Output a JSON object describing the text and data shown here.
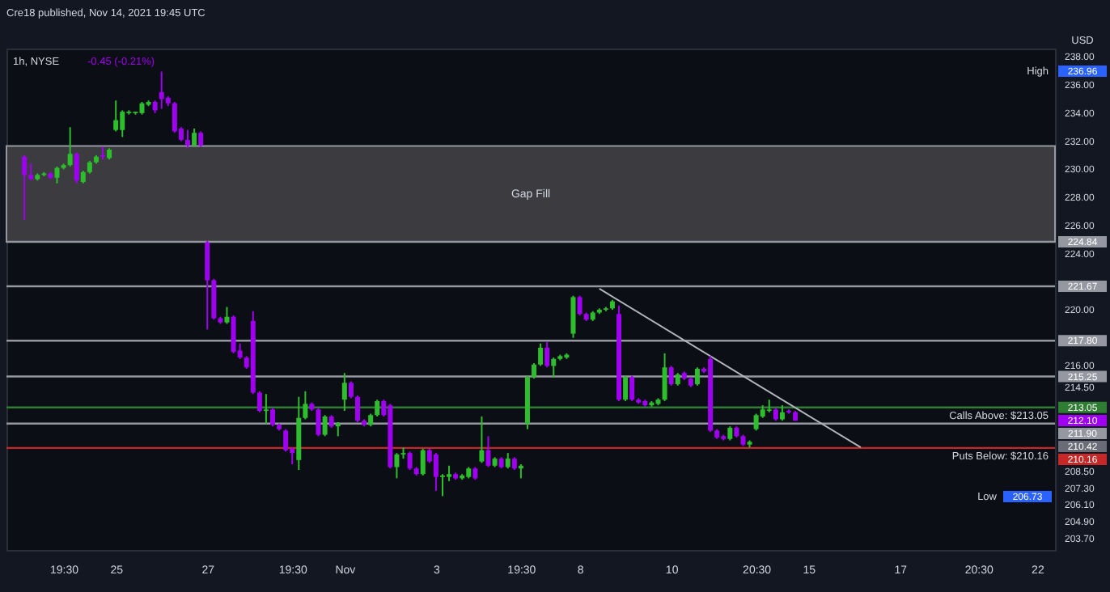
{
  "chart_data": {
    "type": "candlestick",
    "title": "Cre18 published, Nov 14, 2021 19:45 UTC",
    "subtitle": "1h, NYSE",
    "categories": [
      null,
      null,
      null,
      null,
      null,
      null,
      "19:30",
      null,
      null,
      null,
      null,
      null,
      null,
      null,
      "25",
      null,
      null,
      null,
      null,
      null,
      null,
      null,
      null,
      null,
      null,
      null,
      null,
      null,
      "27",
      null,
      null,
      null,
      null,
      null,
      null,
      null,
      null,
      null,
      null,
      null,
      null,
      "19:30",
      null,
      null,
      null,
      null,
      null,
      null,
      null,
      "Nov",
      null,
      null,
      null,
      null,
      null,
      null,
      null,
      null,
      null,
      null,
      null,
      null,
      null,
      "3",
      null,
      null,
      null,
      null,
      null,
      null,
      null,
      null,
      null,
      null,
      null,
      null,
      "19:30",
      null,
      null,
      null,
      null,
      null,
      null,
      null,
      null,
      "8",
      null,
      null,
      null,
      null,
      null,
      null,
      null,
      null,
      null,
      null,
      null,
      null,
      null,
      "10",
      null,
      null,
      null,
      null,
      null,
      null,
      null,
      null,
      null,
      null,
      null,
      null,
      "20:30",
      null,
      null,
      null,
      null,
      null,
      null,
      null,
      "15",
      null,
      null,
      null,
      null,
      null,
      null,
      null,
      null,
      null,
      null,
      null,
      null,
      null,
      "17",
      null,
      null,
      null,
      null,
      null,
      null,
      null,
      null,
      null,
      null,
      null,
      "20:30",
      null,
      null,
      null,
      null,
      null,
      null,
      null,
      null,
      "22"
    ],
    "ohlc": [
      [
        230.9,
        231.0,
        226.4,
        229.6
      ],
      [
        229.6,
        230.4,
        229.2,
        229.3
      ],
      [
        229.3,
        229.7,
        229.2,
        229.6
      ],
      [
        229.6,
        229.8,
        229.5,
        229.7
      ],
      [
        229.7,
        229.8,
        229.3,
        229.4
      ],
      [
        229.4,
        230.2,
        229.0,
        230.1
      ],
      [
        230.1,
        230.4,
        230.0,
        230.3
      ],
      [
        230.3,
        233.0,
        230.2,
        231.1
      ],
      [
        231.1,
        231.2,
        229.0,
        229.2
      ],
      [
        229.1,
        229.9,
        229.0,
        229.8
      ],
      [
        229.8,
        230.6,
        229.7,
        230.5
      ],
      [
        230.5,
        231.0,
        230.4,
        230.9
      ],
      [
        231.0,
        231.6,
        230.7,
        230.9
      ],
      [
        230.8,
        231.5,
        230.7,
        231.4
      ],
      [
        232.8,
        234.9,
        232.7,
        233.5
      ],
      [
        232.8,
        234.2,
        232.3,
        234.1
      ],
      [
        234.0,
        234.2,
        233.9,
        234.1
      ],
      [
        234.0,
        234.1,
        233.9,
        234.1
      ],
      [
        234.0,
        234.8,
        233.9,
        234.7
      ],
      [
        234.6,
        234.9,
        234.5,
        234.8
      ],
      [
        234.8,
        234.9,
        234.0,
        234.2
      ],
      [
        235.5,
        236.96,
        234.3,
        235.0
      ],
      [
        235.1,
        235.2,
        234.5,
        234.7
      ],
      [
        234.7,
        234.8,
        232.6,
        232.7
      ],
      [
        232.9,
        233.0,
        232.0,
        232.1
      ],
      [
        232.1,
        232.8,
        231.5,
        231.7
      ],
      [
        231.7,
        232.9,
        231.6,
        232.6
      ],
      [
        232.6,
        232.7,
        231.6,
        231.7
      ],
      [
        224.8,
        224.9,
        218.6,
        222.1
      ],
      [
        222.1,
        222.2,
        219.3,
        219.4
      ],
      [
        219.4,
        219.5,
        219.0,
        219.1
      ],
      [
        219.1,
        220.2,
        219.0,
        219.5
      ],
      [
        219.5,
        219.6,
        216.9,
        217.0
      ],
      [
        217.1,
        217.6,
        216.5,
        216.6
      ],
      [
        216.6,
        216.7,
        215.8,
        215.9
      ],
      [
        219.2,
        219.9,
        214.0,
        214.1
      ],
      [
        214.1,
        214.2,
        212.7,
        212.8
      ],
      [
        212.8,
        214.0,
        211.9,
        212.9
      ],
      [
        212.9,
        213.0,
        211.7,
        211.8
      ],
      [
        211.8,
        211.9,
        211.4,
        211.5
      ],
      [
        211.4,
        211.5,
        209.9,
        210.0
      ],
      [
        210.1,
        210.2,
        209.0,
        209.8
      ],
      [
        209.3,
        213.8,
        208.6,
        212.3
      ],
      [
        212.3,
        214.2,
        212.2,
        213.3
      ],
      [
        213.3,
        213.4,
        212.8,
        212.9
      ],
      [
        212.9,
        213.0,
        211.0,
        211.1
      ],
      [
        211.1,
        212.5,
        211.0,
        212.4
      ],
      [
        212.4,
        212.5,
        211.6,
        211.7
      ],
      [
        211.7,
        212.0,
        211.0,
        211.9
      ],
      [
        213.6,
        215.5,
        212.8,
        214.8
      ],
      [
        214.8,
        214.9,
        213.7,
        213.8
      ],
      [
        213.8,
        213.9,
        212.0,
        212.1
      ],
      [
        212.1,
        212.2,
        211.7,
        211.8
      ],
      [
        211.8,
        212.6,
        211.7,
        212.5
      ],
      [
        212.5,
        213.6,
        212.4,
        213.5
      ],
      [
        213.5,
        213.6,
        212.4,
        212.5
      ],
      [
        213.2,
        213.3,
        208.7,
        208.8
      ],
      [
        208.8,
        209.8,
        208.0,
        209.7
      ],
      [
        209.7,
        210.2,
        209.4,
        209.8
      ],
      [
        209.8,
        209.9,
        208.6,
        208.7
      ],
      [
        208.7,
        208.8,
        208.2,
        208.3
      ],
      [
        208.3,
        210.1,
        208.2,
        210.0
      ],
      [
        210.0,
        210.1,
        209.1,
        209.2
      ],
      [
        209.7,
        209.8,
        207.1,
        208.1
      ],
      [
        208.1,
        208.3,
        206.73,
        208.2
      ],
      [
        208.1,
        208.9,
        207.8,
        208.3
      ],
      [
        208.3,
        208.4,
        207.9,
        208.0
      ],
      [
        208.0,
        208.3,
        207.9,
        208.2
      ],
      [
        208.1,
        208.8,
        208.0,
        208.7
      ],
      [
        208.7,
        208.8,
        207.9,
        208.0
      ],
      [
        209.2,
        212.4,
        209.1,
        210.0
      ],
      [
        210.0,
        211.0,
        208.8,
        208.9
      ],
      [
        208.9,
        209.5,
        208.8,
        209.4
      ],
      [
        209.4,
        209.5,
        208.7,
        208.8
      ],
      [
        208.8,
        209.8,
        208.7,
        209.4
      ],
      [
        209.4,
        209.5,
        208.6,
        208.7
      ],
      [
        208.7,
        209.0,
        208.0,
        208.9
      ],
      [
        211.9,
        215.3,
        211.5,
        215.2
      ],
      [
        215.2,
        216.2,
        215.1,
        216.1
      ],
      [
        216.1,
        217.6,
        216.0,
        217.3
      ],
      [
        217.3,
        217.7,
        215.9,
        216.0
      ],
      [
        216.0,
        216.6,
        215.2,
        216.5
      ],
      [
        216.5,
        216.8,
        216.4,
        216.7
      ],
      [
        216.6,
        216.9,
        216.5,
        216.8
      ],
      [
        218.3,
        221.0,
        218.0,
        220.9
      ],
      [
        220.9,
        221.0,
        219.6,
        219.7
      ],
      [
        219.7,
        219.8,
        219.2,
        219.3
      ],
      [
        219.3,
        219.9,
        219.2,
        219.8
      ],
      [
        219.8,
        220.1,
        219.7,
        220.0
      ],
      [
        220.0,
        220.2,
        219.9,
        220.1
      ],
      [
        220.1,
        220.7,
        220.0,
        220.6
      ],
      [
        219.7,
        220.3,
        213.5,
        213.6
      ],
      [
        213.6,
        215.3,
        213.5,
        215.2
      ],
      [
        215.2,
        215.3,
        213.5,
        213.6
      ],
      [
        213.6,
        213.7,
        213.3,
        213.4
      ],
      [
        213.5,
        213.6,
        213.1,
        213.2
      ],
      [
        213.2,
        213.5,
        213.1,
        213.4
      ],
      [
        213.3,
        213.7,
        213.2,
        213.6
      ],
      [
        213.6,
        216.9,
        213.5,
        215.9
      ],
      [
        215.9,
        216.0,
        214.6,
        214.7
      ],
      [
        214.7,
        215.5,
        214.6,
        215.4
      ],
      [
        215.5,
        215.6,
        215.0,
        215.1
      ],
      [
        215.1,
        215.2,
        214.5,
        214.6
      ],
      [
        214.7,
        215.9,
        214.6,
        215.8
      ],
      [
        215.8,
        215.9,
        215.5,
        215.6
      ],
      [
        216.5,
        216.7,
        211.3,
        211.4
      ],
      [
        211.4,
        211.5,
        210.8,
        210.9
      ],
      [
        211.0,
        211.1,
        210.7,
        210.8
      ],
      [
        210.8,
        211.7,
        210.7,
        211.6
      ],
      [
        211.6,
        211.7,
        210.9,
        211.0
      ],
      [
        211.0,
        211.1,
        210.3,
        210.4
      ],
      [
        210.4,
        210.7,
        210.2,
        210.6
      ],
      [
        211.5,
        212.6,
        211.4,
        212.5
      ],
      [
        212.4,
        213.2,
        212.3,
        212.9
      ],
      [
        212.8,
        213.6,
        212.7,
        212.9
      ],
      [
        212.9,
        213.0,
        212.1,
        212.2
      ],
      [
        212.2,
        213.2,
        212.1,
        212.7
      ],
      [
        212.8,
        212.9,
        212.6,
        212.7
      ],
      [
        212.7,
        212.8,
        212.1,
        212.1
      ],
      null,
      null,
      null,
      null,
      null,
      null,
      null,
      null,
      null,
      null,
      null,
      null,
      null,
      null,
      null,
      null,
      null,
      null,
      null,
      null,
      null,
      null,
      null,
      null,
      null,
      null,
      null,
      null,
      null,
      null,
      null,
      null,
      null,
      null,
      null,
      null,
      null
    ],
    "colors": [
      "#a000f0",
      "#a000f0",
      "#2dbd2d",
      "#2dbd2d",
      "#a000f0",
      "#2dbd2d",
      "#2dbd2d",
      "#2dbd2d",
      "#a000f0",
      "#2dbd2d",
      "#2dbd2d",
      "#2dbd2d",
      "#a000f0",
      "#2dbd2d",
      "#2dbd2d",
      "#2dbd2d",
      "#2dbd2d",
      "#2dbd2d",
      "#2dbd2d",
      "#2dbd2d",
      "#a000f0",
      "#a000f0",
      "#a000f0",
      "#a000f0",
      "#a000f0",
      "#a000f0",
      "#2dbd2d",
      "#a000f0",
      "#a000f0",
      "#a000f0",
      "#a000f0",
      "#2dbd2d",
      "#a000f0",
      "#a000f0",
      "#a000f0",
      "#a000f0",
      "#a000f0",
      "#2dbd2d",
      "#a000f0",
      "#a000f0",
      "#a000f0",
      "#a000f0",
      "#2dbd2d",
      "#2dbd2d",
      "#a000f0",
      "#a000f0",
      "#2dbd2d",
      "#a000f0",
      "#2dbd2d",
      "#2dbd2d",
      "#a000f0",
      "#a000f0",
      "#a000f0",
      "#2dbd2d",
      "#2dbd2d",
      "#a000f0",
      "#a000f0",
      "#2dbd2d",
      "#2dbd2d",
      "#a000f0",
      "#a000f0",
      "#2dbd2d",
      "#a000f0",
      "#a000f0",
      "#2dbd2d",
      "#2dbd2d",
      "#a000f0",
      "#2dbd2d",
      "#2dbd2d",
      "#a000f0",
      "#2dbd2d",
      "#a000f0",
      "#2dbd2d",
      "#a000f0",
      "#2dbd2d",
      "#a000f0",
      "#2dbd2d",
      "#2dbd2d",
      "#2dbd2d",
      "#2dbd2d",
      "#a000f0",
      "#2dbd2d",
      "#2dbd2d",
      "#2dbd2d",
      "#2dbd2d",
      "#a000f0",
      "#a000f0",
      "#2dbd2d",
      "#2dbd2d",
      "#2dbd2d",
      "#2dbd2d",
      "#a000f0",
      "#2dbd2d",
      "#a000f0",
      "#a000f0",
      "#a000f0",
      "#2dbd2d",
      "#2dbd2d",
      "#2dbd2d",
      "#a000f0",
      "#2dbd2d",
      "#a000f0",
      "#a000f0",
      "#2dbd2d",
      "#a000f0",
      "#a000f0",
      "#a000f0",
      "#a000f0",
      "#2dbd2d",
      "#a000f0",
      "#a000f0",
      "#2dbd2d",
      "#2dbd2d",
      "#2dbd2d",
      "#2dbd2d",
      "#a000f0",
      "#2dbd2d",
      "#a000f0",
      "#a000f0",
      null,
      null,
      null,
      null,
      null,
      null,
      null,
      null,
      null,
      null,
      null,
      null,
      null,
      null,
      null,
      null,
      null,
      null,
      null,
      null,
      null,
      null,
      null,
      null,
      null,
      null,
      null,
      null,
      null,
      null,
      null,
      null,
      null,
      null,
      null,
      null,
      null
    ],
    "series": [
      {
        "type": "line",
        "color": "#b2b5be",
        "values": [
          null,
          null,
          null,
          null,
          null,
          null,
          null,
          null,
          null,
          null,
          null,
          null,
          null,
          null,
          null,
          null,
          null,
          null,
          null,
          null,
          null,
          null,
          null,
          null,
          null,
          null,
          null,
          null,
          null,
          null,
          null,
          null,
          null,
          null,
          null,
          null,
          null,
          null,
          null,
          null,
          null,
          null,
          null,
          null,
          null,
          null,
          null,
          null,
          null,
          null,
          null,
          null,
          null,
          null,
          null,
          null,
          null,
          null,
          null,
          null,
          null,
          null,
          null,
          null,
          null,
          null,
          null,
          null,
          null,
          null,
          null,
          null,
          null,
          null,
          null,
          null,
          null,
          null,
          null,
          null,
          null,
          null,
          null,
          null,
          null,
          null,
          null,
          null,
          221.5,
          null,
          null,
          null,
          null,
          null,
          null,
          null,
          null,
          null,
          null,
          null,
          null,
          null,
          null,
          null,
          null,
          null,
          null,
          null,
          null,
          null,
          null,
          null,
          null,
          null,
          null,
          null,
          null,
          null,
          null,
          null,
          null,
          null,
          null,
          null,
          null,
          null,
          null,
          null,
          210.2,
          null,
          null,
          null,
          null,
          null,
          null,
          null,
          null,
          null,
          null,
          null,
          null,
          null,
          null,
          null,
          null,
          null,
          null,
          null,
          null,
          null,
          null,
          null,
          null,
          null,
          null,
          null
        ]
      }
    ],
    "ylim": [
      202.9,
      238.6
    ],
    "yticks": [
      {
        "value": 238,
        "label": "238.00"
      },
      {
        "value": 236,
        "label": "236.00"
      },
      {
        "value": 234,
        "label": "234.00"
      },
      {
        "value": 232,
        "label": "232.00"
      },
      {
        "value": 230,
        "label": "230.00"
      },
      {
        "value": 228,
        "label": "228.00"
      },
      {
        "value": 226,
        "label": "226.00"
      },
      {
        "value": 224,
        "label": "224.00"
      },
      {
        "value": 220,
        "label": "220.00"
      },
      {
        "value": 216,
        "label": "216.00"
      },
      {
        "value": 214.5,
        "label": "214.50"
      },
      {
        "value": 208.5,
        "label": "208.50"
      },
      {
        "value": 207.3,
        "label": "207.30"
      },
      {
        "value": 206.1,
        "label": "206.10"
      },
      {
        "value": 204.9,
        "label": "204.90"
      },
      {
        "value": 203.7,
        "label": "203.70"
      }
    ],
    "bands": [
      {
        "axis": "y",
        "from": 224.84,
        "to": 231.66,
        "label": "Gap Fill",
        "color": "#3c3c40"
      }
    ],
    "ref_lines": [
      {
        "axis": "y",
        "value": 224.84,
        "label": "224.84",
        "color": "#9598a1"
      },
      {
        "axis": "y",
        "value": 221.67,
        "label": "221.67",
        "color": "#9598a1"
      },
      {
        "axis": "y",
        "value": 217.8,
        "label": "217.80",
        "color": "#9598a1"
      },
      {
        "axis": "y",
        "value": 215.25,
        "label": "215.25",
        "color": "#9598a1"
      },
      {
        "axis": "y",
        "value": 213.05,
        "label": "213.05",
        "color": "#2e7d32"
      },
      {
        "axis": "y",
        "value": 211.9,
        "label": "211.90",
        "color": "#9598a1"
      },
      {
        "axis": "y",
        "value": 210.16,
        "label": "210.16",
        "color": "#c62828"
      }
    ],
    "annotations": [
      "-0.45 (-0.21%)",
      "USD",
      "Calls Above: $213.05",
      "Puts Below: $210.16",
      "High",
      "Low",
      "236.96",
      "212.10",
      "210.42",
      "206.73"
    ]
  }
}
